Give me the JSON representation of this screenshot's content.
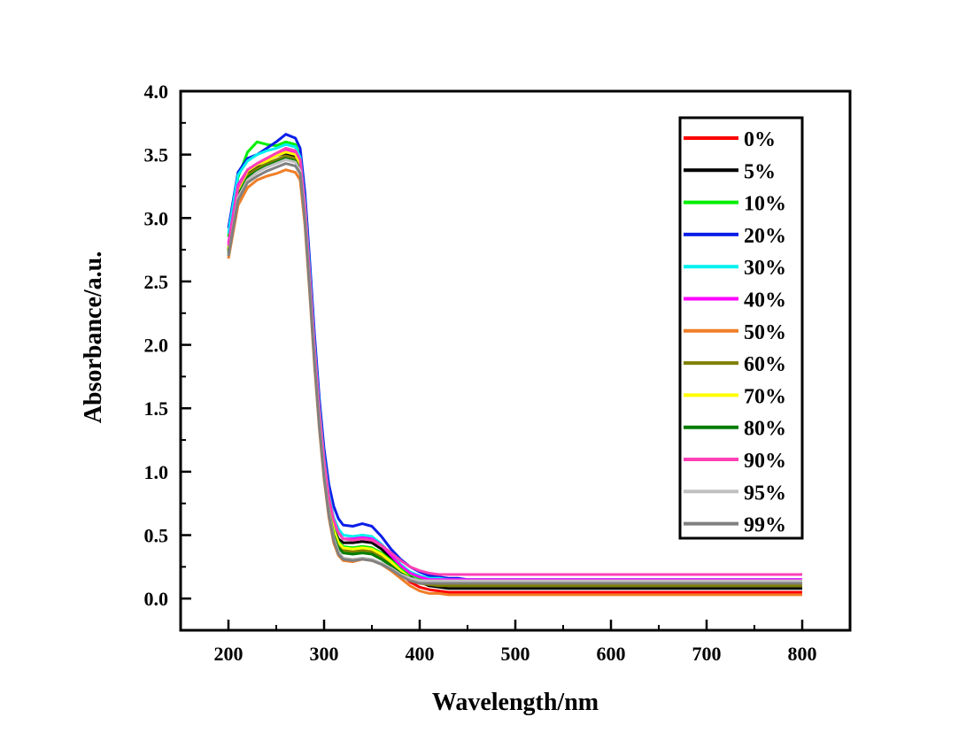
{
  "chart_data": {
    "type": "line",
    "title": "",
    "xlabel": "Wavelength/nm",
    "ylabel": "Absorbance/a.u.",
    "xlim": [
      150,
      850
    ],
    "ylim": [
      -0.25,
      4.0
    ],
    "xticks": [
      200,
      300,
      400,
      500,
      600,
      700,
      800
    ],
    "xtick_labels": [
      "200",
      "300",
      "400",
      "500",
      "600",
      "700",
      "800"
    ],
    "yticks": [
      0.0,
      0.5,
      1.0,
      1.5,
      2.0,
      2.5,
      3.0,
      3.5,
      4.0
    ],
    "ytick_labels": [
      "0.0",
      "0.5",
      "1.0",
      "1.5",
      "2.0",
      "2.5",
      "3.0",
      "3.5",
      "4.0"
    ],
    "grid": false,
    "legend_position": "top-right",
    "x": [
      200,
      210,
      220,
      230,
      240,
      250,
      260,
      270,
      275,
      280,
      285,
      290,
      295,
      300,
      305,
      310,
      315,
      320,
      330,
      340,
      350,
      360,
      370,
      380,
      390,
      400,
      410,
      420,
      430,
      440,
      450,
      460,
      480,
      500,
      600,
      700,
      800
    ],
    "series": [
      {
        "name": "0%",
        "color": "#ff0000",
        "values": [
          2.75,
          3.18,
          3.36,
          3.42,
          3.46,
          3.5,
          3.52,
          3.5,
          3.42,
          3.05,
          2.5,
          1.92,
          1.42,
          1.02,
          0.72,
          0.53,
          0.44,
          0.4,
          0.4,
          0.41,
          0.4,
          0.35,
          0.28,
          0.2,
          0.13,
          0.09,
          0.07,
          0.06,
          0.05,
          0.05,
          0.05,
          0.05,
          0.05,
          0.05,
          0.05,
          0.05,
          0.05
        ]
      },
      {
        "name": "5%",
        "color": "#000000",
        "values": [
          2.76,
          3.18,
          3.35,
          3.41,
          3.46,
          3.49,
          3.51,
          3.49,
          3.41,
          3.04,
          2.49,
          1.92,
          1.42,
          1.03,
          0.73,
          0.55,
          0.47,
          0.44,
          0.44,
          0.45,
          0.44,
          0.39,
          0.32,
          0.24,
          0.17,
          0.13,
          0.1,
          0.09,
          0.08,
          0.08,
          0.08,
          0.08,
          0.08,
          0.08,
          0.08,
          0.08,
          0.08
        ]
      },
      {
        "name": "10%",
        "color": "#00ee00",
        "values": [
          2.85,
          3.32,
          3.52,
          3.6,
          3.58,
          3.57,
          3.6,
          3.58,
          3.48,
          3.09,
          2.53,
          1.94,
          1.44,
          1.03,
          0.73,
          0.55,
          0.45,
          0.41,
          0.4,
          0.41,
          0.4,
          0.36,
          0.3,
          0.24,
          0.19,
          0.16,
          0.15,
          0.14,
          0.14,
          0.14,
          0.14,
          0.14,
          0.14,
          0.14,
          0.14,
          0.14,
          0.14
        ]
      },
      {
        "name": "20%",
        "color": "#0a1ee8",
        "values": [
          2.92,
          3.36,
          3.47,
          3.5,
          3.55,
          3.6,
          3.66,
          3.63,
          3.55,
          3.2,
          2.66,
          2.08,
          1.58,
          1.18,
          0.9,
          0.73,
          0.63,
          0.58,
          0.57,
          0.59,
          0.57,
          0.49,
          0.39,
          0.31,
          0.25,
          0.21,
          0.18,
          0.17,
          0.16,
          0.16,
          0.15,
          0.15,
          0.15,
          0.15,
          0.15,
          0.15,
          0.15
        ]
      },
      {
        "name": "30%",
        "color": "#00f0f0",
        "values": [
          2.88,
          3.34,
          3.45,
          3.5,
          3.53,
          3.55,
          3.58,
          3.56,
          3.48,
          3.12,
          2.58,
          2.0,
          1.51,
          1.11,
          0.82,
          0.64,
          0.55,
          0.5,
          0.49,
          0.5,
          0.49,
          0.43,
          0.35,
          0.27,
          0.21,
          0.18,
          0.16,
          0.16,
          0.15,
          0.15,
          0.15,
          0.15,
          0.15,
          0.15,
          0.15,
          0.15,
          0.15
        ]
      },
      {
        "name": "40%",
        "color": "#ff00ff",
        "values": [
          2.8,
          3.26,
          3.38,
          3.43,
          3.47,
          3.51,
          3.54,
          3.52,
          3.45,
          3.08,
          2.53,
          1.96,
          1.47,
          1.07,
          0.78,
          0.61,
          0.52,
          0.47,
          0.47,
          0.48,
          0.47,
          0.42,
          0.34,
          0.26,
          0.2,
          0.17,
          0.15,
          0.15,
          0.15,
          0.15,
          0.15,
          0.15,
          0.15,
          0.15,
          0.15,
          0.15,
          0.15
        ]
      },
      {
        "name": "50%",
        "color": "#f07e28",
        "values": [
          2.68,
          3.1,
          3.24,
          3.3,
          3.33,
          3.35,
          3.38,
          3.36,
          3.3,
          2.94,
          2.4,
          1.83,
          1.34,
          0.94,
          0.64,
          0.44,
          0.34,
          0.3,
          0.29,
          0.31,
          0.3,
          0.27,
          0.22,
          0.16,
          0.1,
          0.06,
          0.04,
          0.04,
          0.03,
          0.03,
          0.03,
          0.03,
          0.03,
          0.03,
          0.03,
          0.03,
          0.03
        ]
      },
      {
        "name": "60%",
        "color": "#7f7f00",
        "values": [
          2.74,
          3.2,
          3.34,
          3.39,
          3.43,
          3.46,
          3.49,
          3.47,
          3.4,
          3.03,
          2.48,
          1.91,
          1.41,
          1.01,
          0.71,
          0.52,
          0.42,
          0.38,
          0.37,
          0.38,
          0.37,
          0.33,
          0.27,
          0.2,
          0.15,
          0.12,
          0.11,
          0.1,
          0.1,
          0.1,
          0.1,
          0.1,
          0.1,
          0.1,
          0.1,
          0.1,
          0.1
        ]
      },
      {
        "name": "70%",
        "color": "#ffff00",
        "values": [
          2.76,
          3.22,
          3.37,
          3.42,
          3.45,
          3.49,
          3.52,
          3.5,
          3.43,
          3.06,
          2.51,
          1.93,
          1.43,
          1.03,
          0.73,
          0.54,
          0.44,
          0.4,
          0.39,
          0.4,
          0.39,
          0.35,
          0.29,
          0.22,
          0.16,
          0.13,
          0.12,
          0.12,
          0.12,
          0.12,
          0.12,
          0.12,
          0.12,
          0.12,
          0.12,
          0.12,
          0.12
        ]
      },
      {
        "name": "80%",
        "color": "#007d00",
        "values": [
          2.72,
          3.18,
          3.32,
          3.37,
          3.41,
          3.44,
          3.47,
          3.45,
          3.38,
          3.01,
          2.46,
          1.89,
          1.39,
          0.99,
          0.69,
          0.5,
          0.4,
          0.36,
          0.35,
          0.36,
          0.35,
          0.31,
          0.26,
          0.2,
          0.16,
          0.14,
          0.13,
          0.13,
          0.13,
          0.13,
          0.13,
          0.13,
          0.13,
          0.13,
          0.13,
          0.13,
          0.13
        ]
      },
      {
        "name": "90%",
        "color": "#ff3fb4",
        "values": [
          2.78,
          3.24,
          3.38,
          3.43,
          3.47,
          3.51,
          3.55,
          3.53,
          3.46,
          3.09,
          2.54,
          1.97,
          1.48,
          1.09,
          0.8,
          0.62,
          0.52,
          0.47,
          0.46,
          0.47,
          0.46,
          0.42,
          0.36,
          0.3,
          0.25,
          0.22,
          0.2,
          0.19,
          0.19,
          0.19,
          0.19,
          0.19,
          0.19,
          0.19,
          0.19,
          0.19,
          0.19
        ]
      },
      {
        "name": "95%",
        "color": "#c0c0c0",
        "values": [
          2.7,
          3.16,
          3.3,
          3.36,
          3.4,
          3.43,
          3.46,
          3.44,
          3.37,
          3.0,
          2.45,
          1.88,
          1.38,
          0.98,
          0.68,
          0.48,
          0.37,
          0.32,
          0.31,
          0.32,
          0.31,
          0.28,
          0.24,
          0.19,
          0.16,
          0.14,
          0.14,
          0.14,
          0.14,
          0.14,
          0.14,
          0.14,
          0.14,
          0.14,
          0.14,
          0.14,
          0.14
        ]
      },
      {
        "name": "99%",
        "color": "#808080",
        "values": [
          2.7,
          3.14,
          3.28,
          3.33,
          3.37,
          3.4,
          3.43,
          3.41,
          3.35,
          2.98,
          2.43,
          1.86,
          1.36,
          0.96,
          0.66,
          0.46,
          0.35,
          0.31,
          0.3,
          0.31,
          0.3,
          0.27,
          0.23,
          0.18,
          0.14,
          0.12,
          0.12,
          0.12,
          0.12,
          0.12,
          0.12,
          0.12,
          0.12,
          0.12,
          0.12,
          0.12,
          0.12
        ]
      }
    ]
  }
}
